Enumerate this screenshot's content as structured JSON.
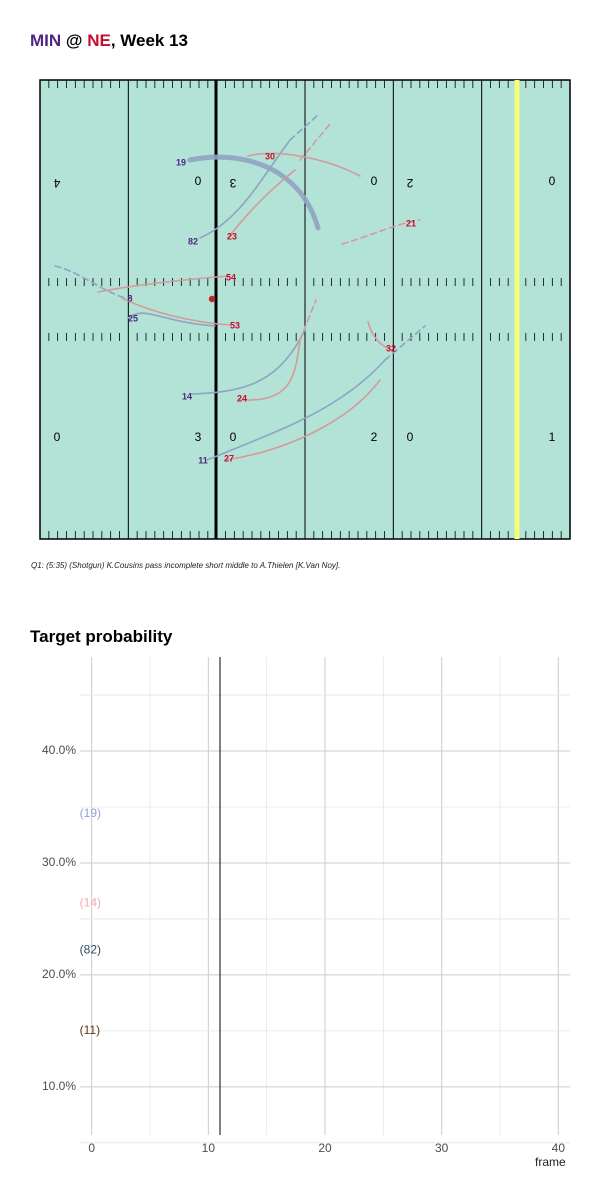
{
  "header": {
    "away": "MIN",
    "at": " @ ",
    "home": "NE",
    "rest": ", Week 13"
  },
  "colors": {
    "away": "#4F2683",
    "home": "#C60C30",
    "field": "#b3e2d6",
    "first_down_line": "#f5ff7a",
    "away_track": "#8ea4c2",
    "home_track": "#d59a9c"
  },
  "field": {
    "yard_numbers_top": [
      "4",
      "0",
      "3",
      "0",
      "2",
      "0"
    ],
    "yard_numbers_bottom": [
      "0",
      "3",
      "0",
      "2",
      "0",
      "1"
    ],
    "yardline_of_scrimmage": "33",
    "ball": {
      "label": "ball"
    },
    "players": [
      {
        "num": "19",
        "team": "away"
      },
      {
        "num": "82",
        "team": "away"
      },
      {
        "num": "8",
        "team": "away"
      },
      {
        "num": "25",
        "team": "away"
      },
      {
        "num": "14",
        "team": "away"
      },
      {
        "num": "11",
        "team": "away"
      },
      {
        "num": "30",
        "team": "home"
      },
      {
        "num": "23",
        "team": "home"
      },
      {
        "num": "21",
        "team": "home"
      },
      {
        "num": "54",
        "team": "home"
      },
      {
        "num": "53",
        "team": "home"
      },
      {
        "num": "32",
        "team": "home"
      },
      {
        "num": "24",
        "team": "home"
      },
      {
        "num": "27",
        "team": "home"
      }
    ]
  },
  "caption": "Q1: (5:35) (Shotgun) K.Cousins pass incomplete short middle to A.Thielen [K.Van Noy].",
  "chart_title": "Target probability",
  "chart_data": {
    "type": "line",
    "title": "Target probability",
    "xlabel": "frame",
    "ylabel": "",
    "xlim": [
      -1,
      41
    ],
    "ylim": [
      5.7,
      48.4
    ],
    "x_ticks": [
      0,
      10,
      20,
      30,
      40
    ],
    "y_ticks": [
      10,
      20,
      30,
      40
    ],
    "y_tick_labels": [
      "10.0%",
      "20.0%",
      "30.0%",
      "40.0%"
    ],
    "current_frame": 11,
    "grid": true,
    "series": [
      {
        "name": "(19)",
        "color": "#8ea4d6",
        "x": [
          0
        ],
        "y": [
          34.4
        ]
      },
      {
        "name": "(14)",
        "color": "#f4a8b0",
        "x": [
          0
        ],
        "y": [
          26.4
        ]
      },
      {
        "name": "(82)",
        "color": "#2f4a5e",
        "x": [
          0
        ],
        "y": [
          22.2
        ]
      },
      {
        "name": "(11)",
        "color": "#5a3a1a",
        "x": [
          0
        ],
        "y": [
          15.0
        ]
      }
    ]
  }
}
